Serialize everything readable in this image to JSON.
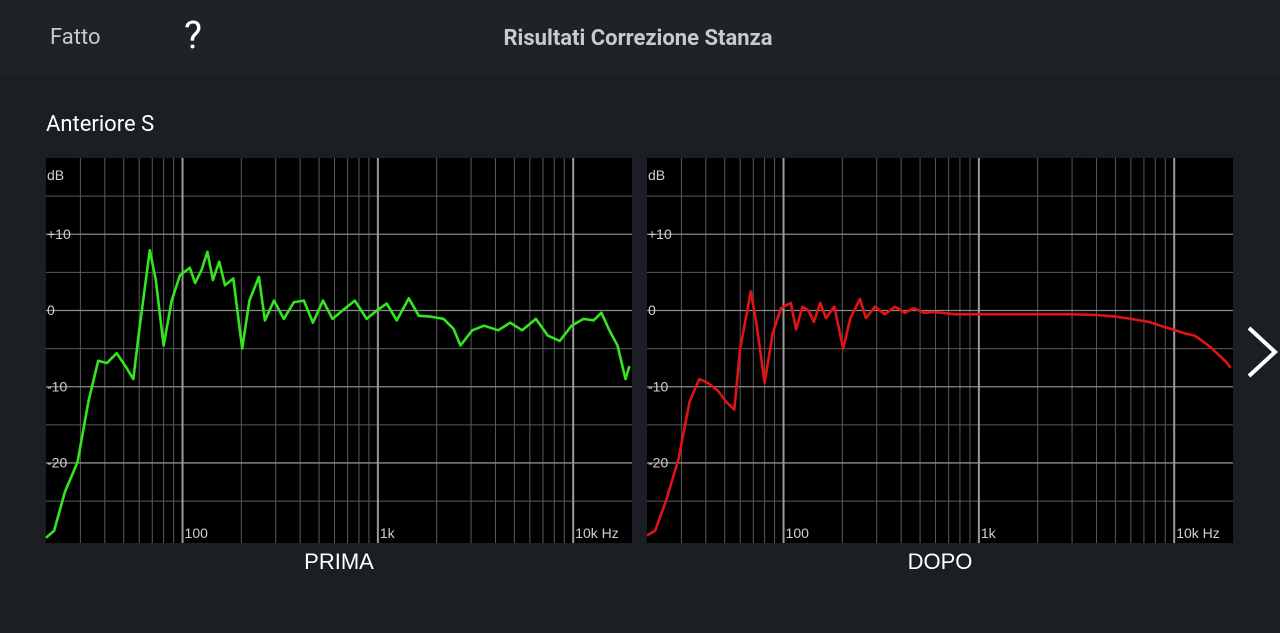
{
  "header": {
    "done": "Fatto",
    "help": "?",
    "title": "Risultati Correzione Stanza"
  },
  "section": "Anteriore S",
  "chart_data": [
    {
      "type": "line",
      "title": "PRIMA",
      "ylabel": "dB",
      "color": "#33e61f",
      "xscale": "log",
      "xlim": [
        20,
        20000
      ],
      "ylim": [
        -30.5,
        20
      ],
      "xticks": [
        100,
        {
          "value": 1000,
          "label": "1k"
        },
        {
          "value": 10000,
          "label": "10k Hz"
        }
      ],
      "yticks": [
        {
          "value": 10,
          "label": "+10"
        },
        0,
        -10,
        -20
      ],
      "xgrid": [
        30,
        40,
        50,
        60,
        70,
        80,
        90,
        200,
        300,
        400,
        500,
        600,
        700,
        800,
        900,
        2000,
        3000,
        4000,
        5000,
        6000,
        7000,
        8000,
        9000
      ],
      "ygrid": [
        -25,
        -15,
        -5,
        5,
        15
      ],
      "x": [
        20,
        22,
        25,
        29,
        33,
        37,
        41,
        46,
        51,
        56,
        60,
        68,
        73,
        80,
        88,
        97,
        109,
        116,
        125,
        134,
        143,
        154,
        165,
        182,
        202,
        220,
        246,
        264,
        294,
        330,
        372,
        418,
        465,
        524,
        586,
        659,
        762,
        877,
        987,
        1110,
        1250,
        1440,
        1620,
        1860,
        2170,
        2440,
        2650,
        3040,
        3500,
        4130,
        4760,
        5480,
        6440,
        7410,
        8530,
        9810,
        11290,
        12700,
        13940,
        15320,
        16850,
        18520,
        19400
      ],
      "values": [
        -29.8,
        -28.9,
        -23.8,
        -19.9,
        -11.9,
        -6.6,
        -6.9,
        -5.6,
        -7.3,
        -9.0,
        -2.6,
        7.9,
        4.0,
        -4.6,
        1.3,
        4.6,
        5.6,
        3.6,
        5.3,
        7.7,
        4.0,
        6.4,
        3.3,
        4.2,
        -5.0,
        1.3,
        4.4,
        -1.3,
        1.3,
        -1.1,
        1.1,
        1.3,
        -1.6,
        1.3,
        -1.1,
        0,
        1.3,
        -1.1,
        0,
        0.9,
        -1.3,
        1.6,
        -0.7,
        -0.8,
        -1.1,
        -2.4,
        -4.6,
        -2.6,
        -2.0,
        -2.6,
        -1.6,
        -2.6,
        -1.1,
        -3.3,
        -4.0,
        -2.0,
        -1.1,
        -1.3,
        -0.3,
        -2.6,
        -4.6,
        -9.0,
        -7.3
      ]
    },
    {
      "type": "line",
      "title": "DOPO",
      "ylabel": "dB",
      "color": "#e01414",
      "xscale": "log",
      "xlim": [
        20,
        20000
      ],
      "ylim": [
        -30.5,
        20
      ],
      "xticks": [
        100,
        {
          "value": 1000,
          "label": "1k"
        },
        {
          "value": 10000,
          "label": "10k Hz"
        }
      ],
      "yticks": [
        {
          "value": 10,
          "label": "+10"
        },
        0,
        -10,
        -20
      ],
      "xgrid": [
        30,
        40,
        50,
        60,
        70,
        80,
        90,
        200,
        300,
        400,
        500,
        600,
        700,
        800,
        900,
        2000,
        3000,
        4000,
        5000,
        6000,
        7000,
        8000,
        9000
      ],
      "ygrid": [
        -25,
        -15,
        -5,
        5,
        15
      ],
      "x": [
        20,
        22,
        25,
        29,
        33,
        37,
        41,
        46,
        51,
        56,
        60,
        68,
        73,
        80,
        88,
        97,
        109,
        116,
        125,
        134,
        143,
        154,
        165,
        182,
        202,
        220,
        246,
        264,
        294,
        330,
        372,
        418,
        465,
        524,
        586,
        762,
        1000,
        1500,
        2000,
        3000,
        4000,
        5000,
        6000,
        7410,
        8530,
        9810,
        11290,
        12700,
        13940,
        15320,
        16850,
        18520,
        19400
      ],
      "values": [
        -29.5,
        -28.9,
        -25,
        -19.5,
        -12,
        -9,
        -9.5,
        -10.5,
        -12,
        -13,
        -5,
        2.5,
        -2,
        -9.5,
        -3,
        0.3,
        1,
        -2.5,
        0.5,
        0,
        -1.5,
        1,
        -1,
        0.5,
        -5,
        -1,
        1.5,
        -1,
        0.5,
        -0.5,
        0.5,
        -0.3,
        0.3,
        -0.3,
        -0.2,
        -0.5,
        -0.5,
        -0.5,
        -0.5,
        -0.5,
        -0.6,
        -0.8,
        -1.1,
        -1.5,
        -2,
        -2.5,
        -3,
        -3.3,
        -4,
        -4.8,
        -5.8,
        -6.8,
        -7.5
      ]
    }
  ]
}
